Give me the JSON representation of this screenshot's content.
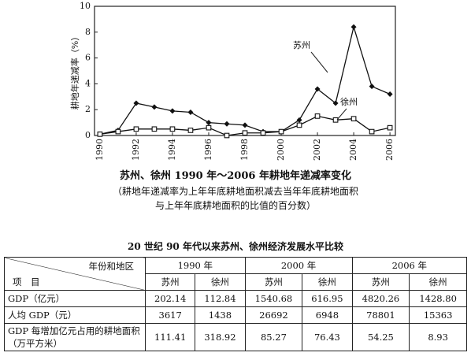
{
  "chart_data": {
    "type": "line",
    "y_label": "耕地年递减率（%）",
    "title": "苏州、徐州 1990 年～2006 年耕地年递减率变化",
    "subtitle": [
      "（耕地年递减率为上年年底耕地面积减去当年年底耕地面积",
      "与上年年底耕地面积的比值的百分数）"
    ],
    "x": [
      1990,
      1991,
      1992,
      1993,
      1994,
      1995,
      1996,
      1997,
      1998,
      1999,
      2000,
      2001,
      2002,
      2003,
      2004,
      2005,
      2006
    ],
    "xlim": [
      1989.7,
      2006.3
    ],
    "xticks": [
      1990,
      1992,
      1994,
      1996,
      1998,
      2000,
      2002,
      2004,
      2006
    ],
    "ylim": [
      0,
      10
    ],
    "yticks": [
      0,
      2,
      4,
      6,
      8,
      10
    ],
    "series": [
      {
        "name": "苏州",
        "color": "#111111",
        "marker": "diamond",
        "values": [
          0.1,
          0.4,
          2.5,
          2.2,
          1.9,
          1.8,
          1.0,
          0.9,
          0.8,
          0.3,
          0.3,
          1.2,
          3.6,
          2.5,
          8.4,
          3.8,
          3.2
        ]
      },
      {
        "name": "徐州",
        "color": "#111111",
        "marker": "square",
        "values": [
          0.1,
          0.3,
          0.5,
          0.5,
          0.5,
          0.4,
          0.6,
          0.0,
          0.2,
          0.2,
          0.3,
          0.8,
          1.5,
          1.2,
          1.3,
          0.3,
          0.6
        ]
      }
    ]
  },
  "table": {
    "title": "20 世纪 90 年代以来苏州、徐州经济发展水平比较",
    "corner_top": "年份和地区",
    "corner_bottom": "项　目",
    "years": [
      "1990 年",
      "2000 年",
      "2006 年"
    ],
    "regions": [
      "苏州",
      "徐州",
      "苏州",
      "徐州",
      "苏州",
      "徐州"
    ],
    "rows": [
      [
        "GDP（亿元）",
        "202.14",
        "112.84",
        "1540.68",
        "616.95",
        "4820.26",
        "1428.80"
      ],
      [
        "人均 GDP（元）",
        "3617",
        "1438",
        "26692",
        "6948",
        "78801",
        "15363"
      ],
      [
        "GDP 每增加亿元占用的耕地面积（万平方米）",
        "111.41",
        "318.92",
        "85.27",
        "76.43",
        "54.25",
        "8.93"
      ]
    ]
  }
}
